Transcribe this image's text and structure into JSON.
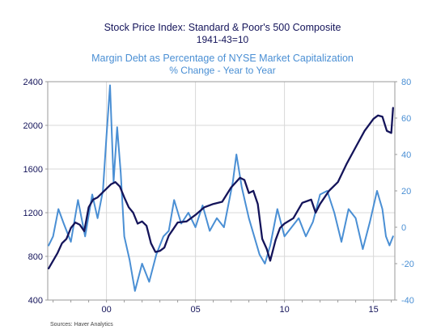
{
  "chart_data": {
    "type": "line",
    "title": "Stock Price Index: Standard & Poor's 500 Composite",
    "subtitle": "1941-43=10",
    "title2": "Margin Debt as Percentage of NYSE Market Capitalization",
    "subtitle2": "% Change - Year to Year",
    "source": "Sources:   Haver Analytics",
    "colors": {
      "series1": "#14145a",
      "series2": "#4a8fd4",
      "left_axis": "#14145a",
      "right_axis": "#4a8fd4",
      "grid": "#d8d8d8"
    },
    "x_ticks": [
      {
        "year": 2000,
        "label": "00"
      },
      {
        "year": 2005,
        "label": "05"
      },
      {
        "year": 2010,
        "label": "10"
      },
      {
        "year": 2015,
        "label": "15"
      }
    ],
    "xlim": [
      1996.7,
      2016.2
    ],
    "y_left": {
      "ylim": [
        400,
        2400
      ],
      "ticks": [
        400,
        800,
        1200,
        1600,
        2000,
        2400
      ]
    },
    "y_right": {
      "ylim": [
        -40,
        80
      ],
      "ticks": [
        -40,
        -20,
        0,
        20,
        40,
        60,
        80
      ]
    },
    "grid": true,
    "series": [
      {
        "axis": "left",
        "x": [
          1996.75,
          1997.0,
          1997.25,
          1997.5,
          1997.75,
          1998.0,
          1998.25,
          1998.5,
          1998.75,
          1999.0,
          1999.25,
          1999.5,
          1999.75,
          2000.0,
          2000.25,
          2000.5,
          2000.75,
          2001.0,
          2001.25,
          2001.5,
          2001.75,
          2002.0,
          2002.25,
          2002.5,
          2002.75,
          2003.0,
          2003.25,
          2003.5,
          2003.75,
          2004.0,
          2004.5,
          2005.0,
          2005.5,
          2006.0,
          2006.5,
          2007.0,
          2007.5,
          2007.75,
          2008.0,
          2008.25,
          2008.5,
          2008.75,
          2009.0,
          2009.2,
          2009.5,
          2009.75,
          2010.0,
          2010.5,
          2011.0,
          2011.5,
          2011.75,
          2012.0,
          2012.5,
          2013.0,
          2013.5,
          2014.0,
          2014.5,
          2015.0,
          2015.25,
          2015.5,
          2015.75,
          2016.0,
          2016.1
        ],
        "values": [
          690,
          760,
          830,
          920,
          960,
          1060,
          1110,
          1090,
          1030,
          1250,
          1320,
          1340,
          1380,
          1420,
          1460,
          1480,
          1440,
          1340,
          1250,
          1200,
          1100,
          1120,
          1080,
          920,
          840,
          850,
          880,
          990,
          1050,
          1110,
          1120,
          1180,
          1250,
          1280,
          1300,
          1430,
          1520,
          1500,
          1380,
          1400,
          1280,
          960,
          870,
          760,
          950,
          1060,
          1100,
          1150,
          1290,
          1320,
          1200,
          1280,
          1400,
          1480,
          1650,
          1800,
          1950,
          2060,
          2090,
          2080,
          1950,
          1930,
          2160
        ],
        "peak_note": "max ~2170"
      },
      {
        "axis": "right",
        "x": [
          1996.75,
          1997.0,
          1997.3,
          1997.6,
          1998.0,
          1998.4,
          1998.8,
          1999.2,
          1999.5,
          1999.8,
          2000.0,
          2000.2,
          2000.4,
          2000.6,
          2000.8,
          2001.0,
          2001.3,
          2001.6,
          2002.0,
          2002.4,
          2002.8,
          2003.2,
          2003.5,
          2003.8,
          2004.2,
          2004.6,
          2005.0,
          2005.4,
          2005.8,
          2006.2,
          2006.6,
          2006.9,
          2007.1,
          2007.3,
          2007.6,
          2008.0,
          2008.3,
          2008.6,
          2008.9,
          2009.2,
          2009.6,
          2010.0,
          2010.4,
          2010.8,
          2011.2,
          2011.6,
          2012.0,
          2012.4,
          2012.8,
          2013.2,
          2013.6,
          2014.0,
          2014.4,
          2014.8,
          2015.2,
          2015.5,
          2015.7,
          2015.9,
          2016.1
        ],
        "values": [
          -10,
          -5,
          10,
          2,
          -8,
          15,
          -5,
          18,
          5,
          20,
          50,
          78,
          25,
          55,
          30,
          -5,
          -18,
          -35,
          -20,
          -30,
          -15,
          -5,
          -2,
          15,
          2,
          8,
          0,
          12,
          -2,
          5,
          0,
          15,
          25,
          40,
          22,
          5,
          -5,
          -15,
          -20,
          -10,
          10,
          -5,
          0,
          5,
          -5,
          3,
          18,
          20,
          8,
          -8,
          10,
          5,
          -12,
          3,
          20,
          10,
          -5,
          -10,
          -5
        ]
      }
    ]
  }
}
